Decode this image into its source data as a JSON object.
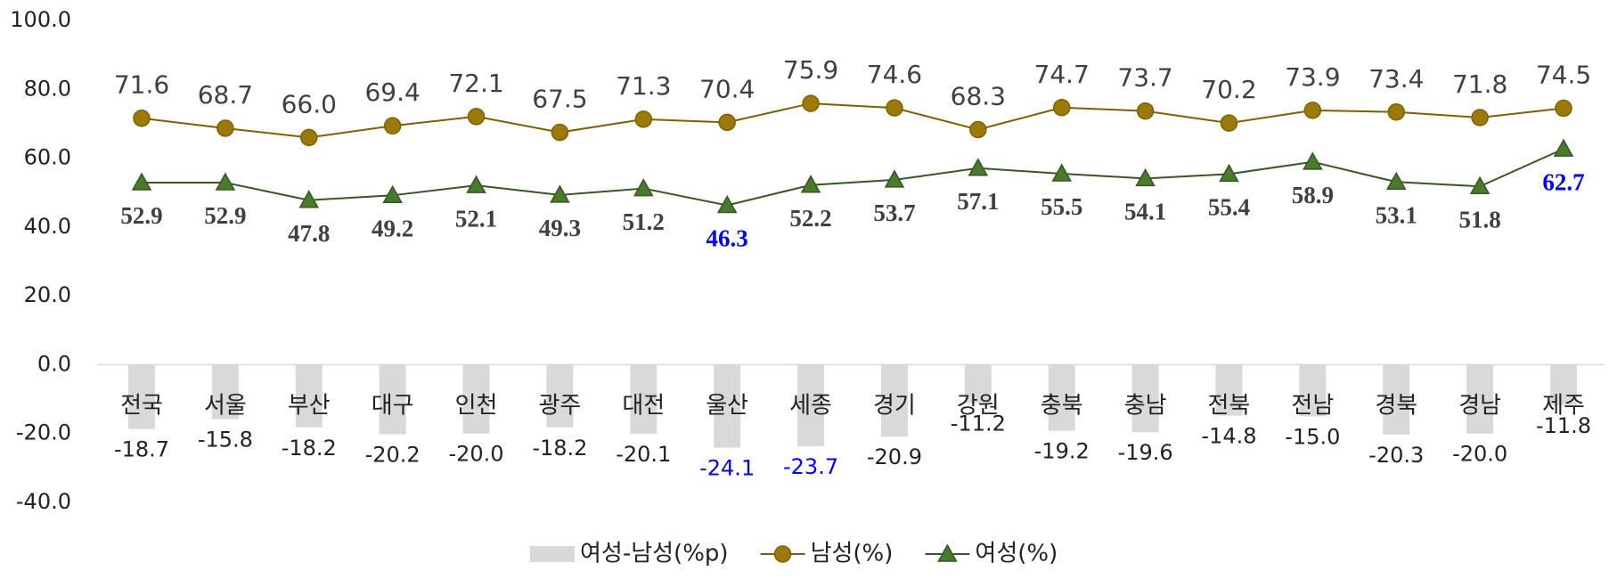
{
  "chart_data": {
    "type": "line",
    "categories": [
      "전국",
      "서울",
      "부산",
      "대구",
      "인천",
      "광주",
      "대전",
      "울산",
      "세종",
      "경기",
      "강원",
      "충북",
      "충남",
      "전북",
      "전남",
      "경북",
      "경남",
      "제주"
    ],
    "series": [
      {
        "name": "여성-남성(%p)",
        "type": "bar",
        "color": "#d9d9d9",
        "label_color": "#222222",
        "highlight_label_color": "#0000ff",
        "highlight_indices": [
          7,
          8
        ],
        "values": [
          -18.7,
          -15.8,
          -18.2,
          -20.2,
          -20.0,
          -18.2,
          -20.1,
          -24.1,
          -23.7,
          -20.9,
          -11.2,
          -19.2,
          -19.6,
          -14.8,
          -15.0,
          -20.3,
          -20.0,
          -11.8
        ],
        "value_labels": [
          "-18.7",
          "-15.8",
          "-18.2",
          "-20.2",
          "-20.0",
          "-18.2",
          "-20.1",
          "-24.1",
          "-23.7",
          "-20.9",
          "-11.2",
          "-19.2",
          "-19.6",
          "-14.8",
          "-15.0",
          "-20.3",
          "-20.0",
          "-11.8"
        ]
      },
      {
        "name": "남성(%)",
        "type": "line",
        "marker": "circle",
        "color": "#7f6000",
        "marker_color": "#9c7a0a",
        "label_color": "#404040",
        "values": [
          71.6,
          68.7,
          66.0,
          69.4,
          72.1,
          67.5,
          71.3,
          70.4,
          75.9,
          74.6,
          68.3,
          74.7,
          73.7,
          70.2,
          73.9,
          73.4,
          71.8,
          74.5
        ],
        "value_labels": [
          "71.6",
          "68.7",
          "66.0",
          "69.4",
          "72.1",
          "67.5",
          "71.3",
          "70.4",
          "75.9",
          "74.6",
          "68.3",
          "74.7",
          "73.7",
          "70.2",
          "73.9",
          "73.4",
          "71.8",
          "74.5"
        ]
      },
      {
        "name": "여성(%)",
        "type": "line",
        "marker": "triangle",
        "color": "#375623",
        "marker_color": "#4a7a2c",
        "label_color": "#404040",
        "highlight_label_color": "#0000ff",
        "highlight_indices": [
          7,
          17
        ],
        "values": [
          52.9,
          52.9,
          47.8,
          49.2,
          52.1,
          49.3,
          51.2,
          46.3,
          52.2,
          53.7,
          57.1,
          55.5,
          54.1,
          55.4,
          58.9,
          53.1,
          51.8,
          62.7
        ],
        "value_labels": [
          "52.9",
          "52.9",
          "47.8",
          "49.2",
          "52.1",
          "49.3",
          "51.2",
          "46.3",
          "52.2",
          "53.7",
          "57.1",
          "55.5",
          "54.1",
          "55.4",
          "58.9",
          "53.1",
          "51.8",
          "62.7"
        ]
      }
    ],
    "ylim": [
      -40,
      100
    ],
    "yticks": [
      {
        "value": -40,
        "label": "-40.0"
      },
      {
        "value": -20,
        "label": "-20.0"
      },
      {
        "value": 0,
        "label": "0.0"
      },
      {
        "value": 20,
        "label": "20.0"
      },
      {
        "value": 40,
        "label": "40.0"
      },
      {
        "value": 60,
        "label": "60.0"
      },
      {
        "value": 80,
        "label": "80.0"
      },
      {
        "value": 100,
        "label": "100.0"
      }
    ],
    "grid": false,
    "legend": "bottom"
  }
}
